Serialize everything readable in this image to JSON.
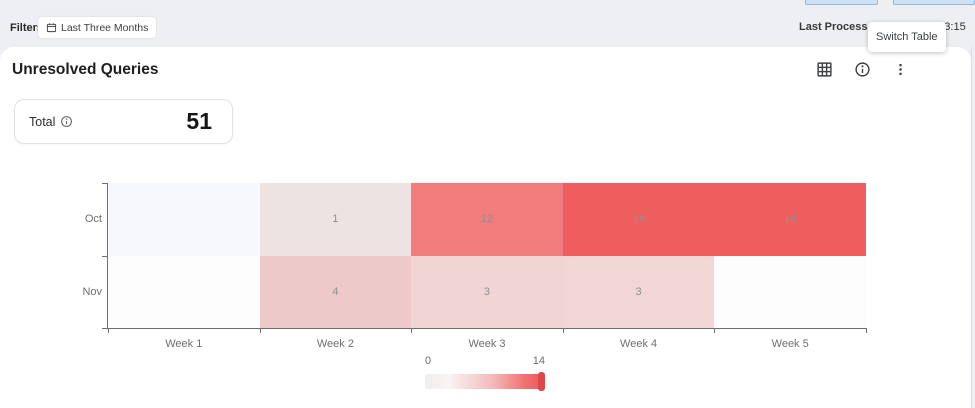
{
  "topbar": {
    "filters_label": "Filters:",
    "filter_chip": "Last Three Months",
    "last_processed_label": "Last Processed",
    "timestamp": "1:13:15",
    "tooltip": "Switch Table"
  },
  "card": {
    "title": "Unresolved Queries",
    "total": {
      "label": "Total",
      "value": "51"
    }
  },
  "chart_data": {
    "type": "heatmap",
    "title": "Unresolved Queries",
    "x_categories": [
      "Week 1",
      "Week 2",
      "Week 3",
      "Week 4",
      "Week 5"
    ],
    "y_categories": [
      "Oct",
      "Nov"
    ],
    "series": [
      {
        "name": "Oct",
        "values": [
          null,
          1,
          12,
          14,
          14
        ]
      },
      {
        "name": "Nov",
        "values": [
          null,
          4,
          3,
          3,
          null
        ]
      }
    ],
    "cell_colors": [
      [
        "#f6f8fb",
        "#eee3e3",
        "#f17c7c",
        "#ee5e5e",
        "#ee5e5e"
      ],
      [
        "#fdfdfe",
        "#eec9c9",
        "#f1d5d5",
        "#f1d6d6",
        "#fdfdfd"
      ]
    ],
    "value_label_color": "#8f8f8f",
    "colorbar": {
      "min": 0,
      "max": 14,
      "min_label": "0",
      "max_label": "14",
      "start_color": "#efeeee",
      "end_color": "#ee5a5a",
      "handle_color": "#e04848"
    },
    "legend_position": "bottom-center",
    "grid": false
  }
}
